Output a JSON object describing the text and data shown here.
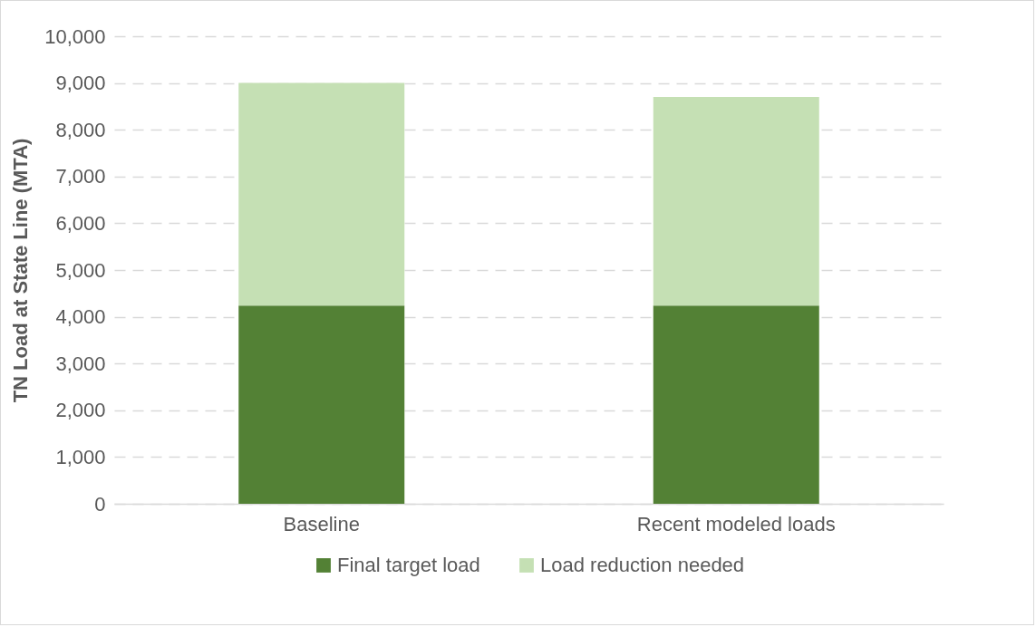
{
  "chart_data": {
    "type": "bar",
    "ylabel": "TN Load at State Line (MTA)",
    "categories": [
      "Baseline",
      "Recent modeled loads"
    ],
    "stacked": true,
    "series": [
      {
        "name": "Final target load",
        "color": "#538135",
        "values": [
          4240,
          4240
        ]
      },
      {
        "name": "Load reduction needed",
        "color": "#c5e0b4",
        "values": [
          4760,
          4460
        ]
      }
    ],
    "ylim": [
      0,
      10000
    ],
    "yticks": [
      0,
      {
        "value": 1000,
        "label": "1,000"
      },
      {
        "value": 2000,
        "label": "2,000"
      },
      {
        "value": 3000,
        "label": "3,000"
      },
      {
        "value": 4000,
        "label": "4,000"
      },
      {
        "value": 5000,
        "label": "5,000"
      },
      {
        "value": 6000,
        "label": "6,000"
      },
      {
        "value": 7000,
        "label": "7,000"
      },
      {
        "value": 8000,
        "label": "8,000"
      },
      {
        "value": 9000,
        "label": "9,000"
      },
      {
        "value": 10000,
        "label": "10,000"
      }
    ],
    "grid": "y",
    "legend": "bottom"
  }
}
